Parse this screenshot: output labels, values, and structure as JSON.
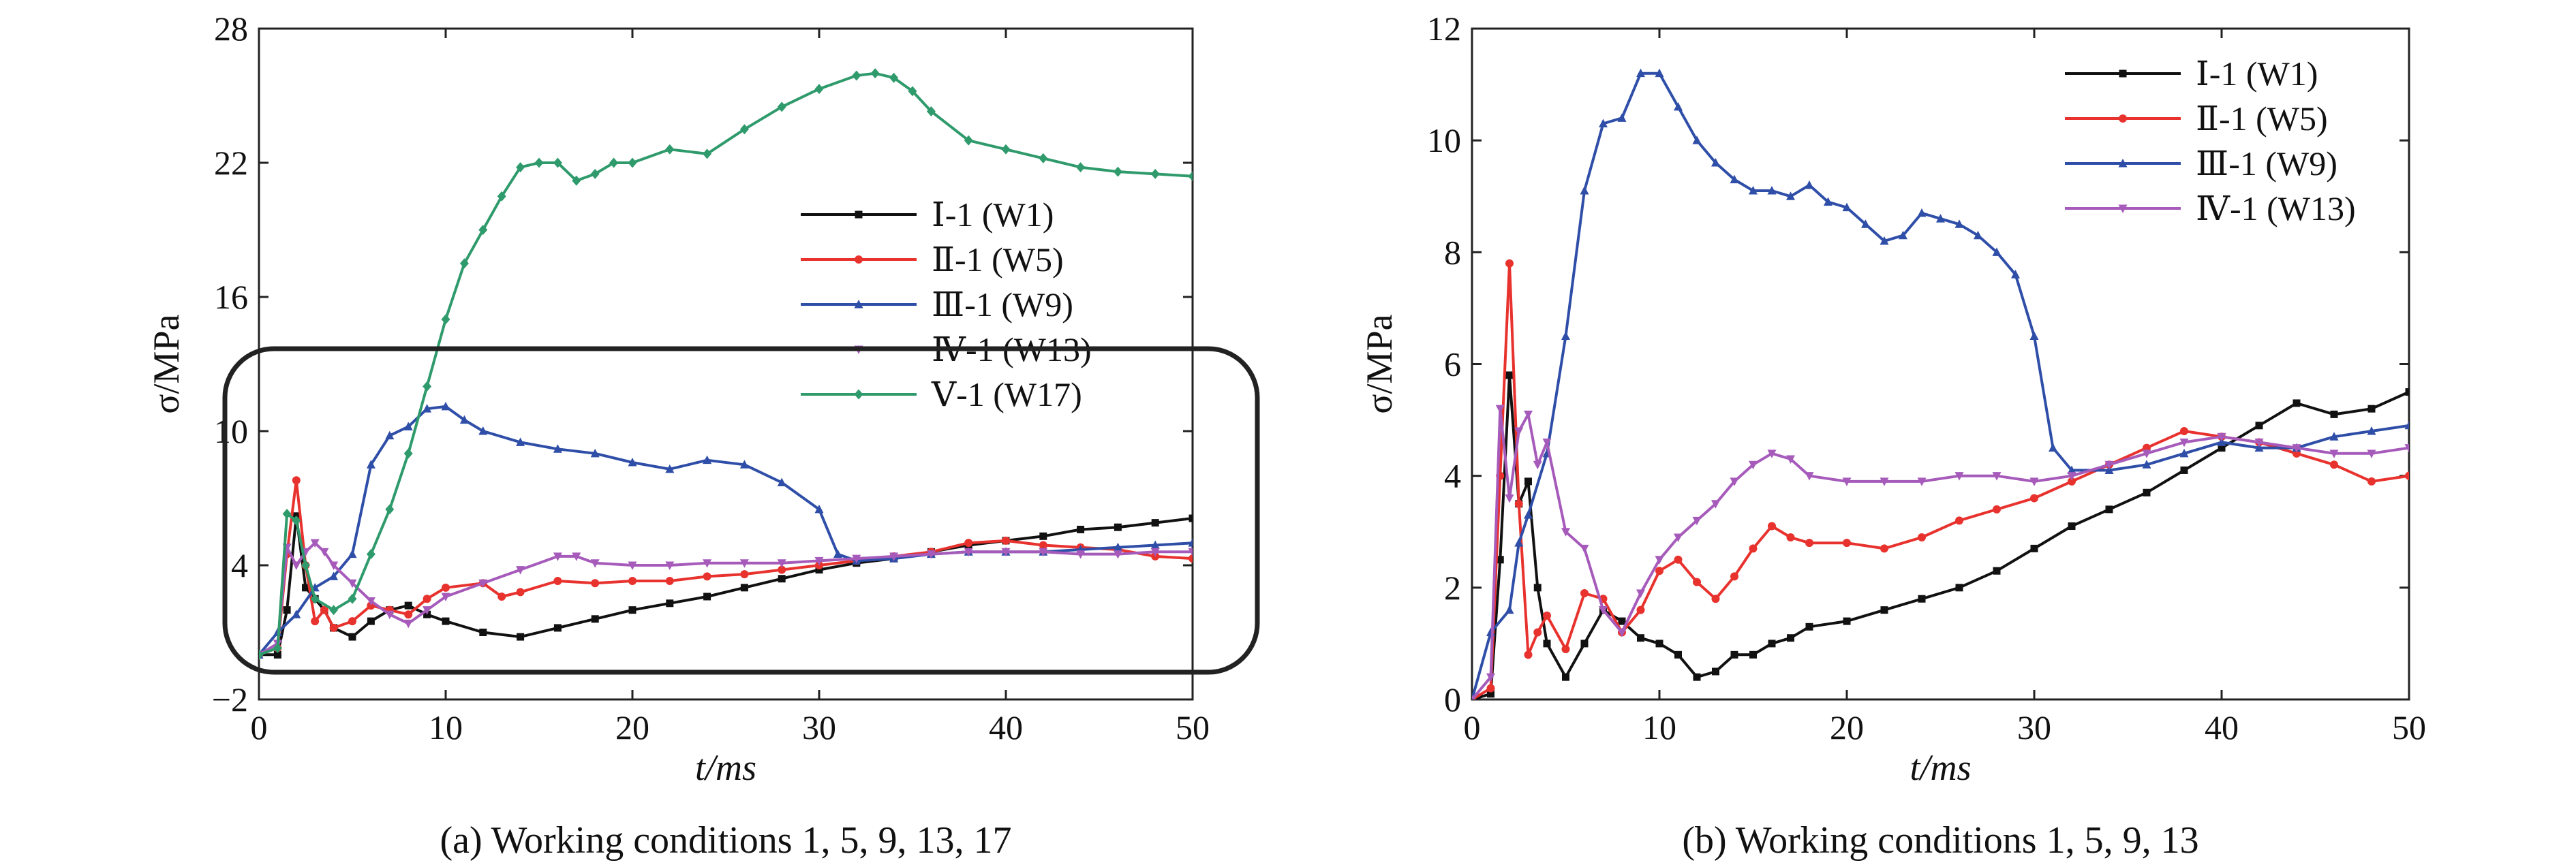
{
  "colors": {
    "W1": "#111111",
    "W5": "#e8322e",
    "W9": "#2f4ea8",
    "W13": "#a65bbb",
    "W17": "#2f9a6b",
    "frame": "#222222"
  },
  "chart_data": [
    {
      "type": "line",
      "caption": "(a) Working conditions 1, 5, 9, 13, 17",
      "xlabel": "t/ms",
      "ylabel": "σ/MPa",
      "xlim": [
        0,
        50
      ],
      "ylim": [
        -2,
        28
      ],
      "xticks": [
        "0",
        "10",
        "20",
        "30",
        "40",
        "50"
      ],
      "yticks": [
        "−2",
        "4",
        "10",
        "16",
        "22",
        "28"
      ],
      "xtick_values": [
        0,
        10,
        20,
        30,
        40,
        50
      ],
      "ytick_values": [
        -2,
        4,
        10,
        16,
        22,
        28
      ],
      "legend_position": "center-right",
      "annotation": "rounded rectangle highlighting 0–12 MPa region",
      "series": [
        {
          "name": "Ⅰ-1 (W1)",
          "color": "#111111",
          "marker": "square",
          "x": [
            0,
            1,
            1.5,
            2,
            2.5,
            3,
            3.5,
            4,
            5,
            6,
            7,
            8,
            9,
            10,
            12,
            14,
            16,
            18,
            20,
            22,
            24,
            26,
            28,
            30,
            32,
            34,
            36,
            38,
            40,
            42,
            44,
            46,
            48,
            50
          ],
          "y": [
            0,
            0,
            2,
            6.2,
            3,
            2.5,
            2,
            1.2,
            0.8,
            1.5,
            2,
            2.2,
            1.8,
            1.5,
            1.0,
            0.8,
            1.2,
            1.6,
            2,
            2.3,
            2.6,
            3,
            3.4,
            3.8,
            4.1,
            4.3,
            4.6,
            4.9,
            5.1,
            5.3,
            5.6,
            5.7,
            5.9,
            6.1
          ]
        },
        {
          "name": "Ⅱ-1 (W5)",
          "color": "#e8322e",
          "marker": "circle",
          "x": [
            0,
            1,
            1.5,
            2,
            2.5,
            3,
            3.5,
            4,
            5,
            6,
            7,
            8,
            9,
            10,
            12,
            13,
            14,
            16,
            18,
            20,
            22,
            24,
            26,
            28,
            30,
            32,
            34,
            36,
            38,
            40,
            42,
            44,
            46,
            48,
            50
          ],
          "y": [
            0,
            0.3,
            4.5,
            7.8,
            4,
            1.5,
            2,
            1.2,
            1.5,
            2.2,
            2.0,
            1.8,
            2.5,
            3.0,
            3.2,
            2.6,
            2.8,
            3.3,
            3.2,
            3.3,
            3.3,
            3.5,
            3.6,
            3.8,
            4.0,
            4.2,
            4.4,
            4.6,
            5.0,
            5.1,
            4.9,
            4.8,
            4.7,
            4.4,
            4.3
          ]
        },
        {
          "name": "Ⅲ-1 (W9)",
          "color": "#2f4ea8",
          "marker": "triangle-up",
          "x": [
            0,
            1,
            2,
            3,
            4,
            5,
            6,
            7,
            8,
            9,
            10,
            11,
            12,
            14,
            16,
            18,
            20,
            22,
            24,
            26,
            28,
            30,
            31,
            32,
            34,
            36,
            38,
            40,
            42,
            44,
            46,
            48,
            50
          ],
          "y": [
            0,
            1,
            1.8,
            3,
            3.5,
            4.5,
            8.5,
            9.8,
            10.2,
            11.0,
            11.1,
            10.5,
            10.0,
            9.5,
            9.2,
            9.0,
            8.6,
            8.3,
            8.7,
            8.5,
            7.7,
            6.5,
            4.5,
            4.2,
            4.3,
            4.5,
            4.6,
            4.6,
            4.6,
            4.7,
            4.8,
            4.9,
            5.0
          ]
        },
        {
          "name": "Ⅳ-1 (W13)",
          "color": "#a65bbb",
          "marker": "triangle-down",
          "x": [
            0,
            1,
            1.5,
            2,
            2.5,
            3,
            3.5,
            4,
            5,
            6,
            7,
            8,
            9,
            10,
            12,
            14,
            16,
            17,
            18,
            20,
            22,
            24,
            26,
            28,
            30,
            32,
            34,
            36,
            38,
            40,
            42,
            44,
            46,
            48,
            50
          ],
          "y": [
            0,
            0.5,
            4.8,
            4.0,
            4.6,
            5.0,
            4.6,
            4.0,
            3.2,
            2.4,
            1.8,
            1.4,
            2.0,
            2.6,
            3.2,
            3.8,
            4.4,
            4.4,
            4.1,
            4.0,
            4.0,
            4.1,
            4.1,
            4.1,
            4.2,
            4.3,
            4.4,
            4.5,
            4.6,
            4.6,
            4.6,
            4.5,
            4.5,
            4.6,
            4.6
          ]
        },
        {
          "name": "Ⅴ-1 (W17)",
          "color": "#2f9a6b",
          "marker": "diamond",
          "x": [
            0,
            1,
            1.5,
            2,
            2.5,
            3,
            4,
            5,
            6,
            7,
            8,
            9,
            10,
            11,
            12,
            13,
            14,
            15,
            16,
            17,
            18,
            19,
            20,
            22,
            24,
            26,
            28,
            30,
            32,
            33,
            34,
            35,
            36,
            38,
            40,
            42,
            44,
            46,
            48,
            50
          ],
          "y": [
            0,
            0.3,
            6.3,
            6.0,
            4.0,
            2.5,
            2.0,
            2.5,
            4.5,
            6.5,
            9.0,
            12.0,
            15.0,
            17.5,
            19.0,
            20.5,
            21.8,
            22.0,
            22.0,
            21.2,
            21.5,
            22.0,
            22.0,
            22.6,
            22.4,
            23.5,
            24.5,
            25.3,
            25.9,
            26.0,
            25.8,
            25.2,
            24.3,
            23.0,
            22.6,
            22.2,
            21.8,
            21.6,
            21.5,
            21.4
          ]
        }
      ]
    },
    {
      "type": "line",
      "caption": "(b) Working conditions 1, 5, 9, 13",
      "xlabel": "t/ms",
      "ylabel": "σ/MPa",
      "xlim": [
        0,
        50
      ],
      "ylim": [
        0,
        12
      ],
      "xticks": [
        "0",
        "10",
        "20",
        "30",
        "40",
        "50"
      ],
      "yticks": [
        "0",
        "2",
        "4",
        "6",
        "8",
        "10",
        "12"
      ],
      "xtick_values": [
        0,
        10,
        20,
        30,
        40,
        50
      ],
      "ytick_values": [
        0,
        2,
        4,
        6,
        8,
        10,
        12
      ],
      "legend_position": "top-right",
      "series": [
        {
          "name": "Ⅰ-1 (W1)",
          "color": "#111111",
          "marker": "square",
          "x": [
            0,
            1,
            1.5,
            2,
            2.5,
            3,
            3.5,
            4,
            5,
            6,
            7,
            8,
            9,
            10,
            11,
            12,
            13,
            14,
            15,
            16,
            17,
            18,
            20,
            22,
            24,
            26,
            28,
            30,
            32,
            34,
            36,
            38,
            40,
            42,
            44,
            46,
            48,
            50
          ],
          "y": [
            0,
            0.1,
            2.5,
            5.8,
            3.5,
            3.9,
            2.0,
            1.0,
            0.4,
            1.0,
            1.6,
            1.4,
            1.1,
            1.0,
            0.8,
            0.4,
            0.5,
            0.8,
            0.8,
            1.0,
            1.1,
            1.3,
            1.4,
            1.6,
            1.8,
            2.0,
            2.3,
            2.7,
            3.1,
            3.4,
            3.7,
            4.1,
            4.5,
            4.9,
            5.3,
            5.1,
            5.2,
            5.5
          ]
        },
        {
          "name": "Ⅱ-1 (W5)",
          "color": "#e8322e",
          "marker": "circle",
          "x": [
            0,
            1,
            1.5,
            2,
            2.5,
            3,
            3.5,
            4,
            5,
            6,
            7,
            8,
            9,
            10,
            11,
            12,
            13,
            14,
            15,
            16,
            17,
            18,
            20,
            22,
            24,
            26,
            28,
            30,
            32,
            34,
            36,
            38,
            40,
            42,
            44,
            46,
            48,
            50
          ],
          "y": [
            0,
            0.2,
            4.0,
            7.8,
            3.5,
            0.8,
            1.2,
            1.5,
            0.9,
            1.9,
            1.8,
            1.2,
            1.6,
            2.3,
            2.5,
            2.1,
            1.8,
            2.2,
            2.7,
            3.1,
            2.9,
            2.8,
            2.8,
            2.7,
            2.9,
            3.2,
            3.4,
            3.6,
            3.9,
            4.2,
            4.5,
            4.8,
            4.7,
            4.6,
            4.4,
            4.2,
            3.9,
            4.0
          ]
        },
        {
          "name": "Ⅲ-1 (W9)",
          "color": "#2f4ea8",
          "marker": "triangle-up",
          "x": [
            0,
            1,
            2,
            2.5,
            3,
            4,
            5,
            6,
            7,
            8,
            9,
            10,
            11,
            12,
            13,
            14,
            15,
            16,
            17,
            18,
            19,
            20,
            21,
            22,
            23,
            24,
            25,
            26,
            27,
            28,
            29,
            30,
            31,
            32,
            34,
            36,
            38,
            40,
            42,
            44,
            46,
            48,
            50
          ],
          "y": [
            0,
            1.2,
            1.6,
            2.8,
            3.3,
            4.4,
            6.5,
            9.1,
            10.3,
            10.4,
            11.2,
            11.2,
            10.6,
            10.0,
            9.6,
            9.3,
            9.1,
            9.1,
            9.0,
            9.2,
            8.9,
            8.8,
            8.5,
            8.2,
            8.3,
            8.7,
            8.6,
            8.5,
            8.3,
            8.0,
            7.6,
            6.5,
            4.5,
            4.1,
            4.1,
            4.2,
            4.4,
            4.6,
            4.5,
            4.5,
            4.7,
            4.8,
            4.9
          ]
        },
        {
          "name": "Ⅳ-1 (W13)",
          "color": "#a65bbb",
          "marker": "triangle-down",
          "x": [
            0,
            1,
            1.5,
            2,
            2.5,
            3,
            3.5,
            4,
            5,
            6,
            7,
            8,
            9,
            10,
            11,
            12,
            13,
            14,
            15,
            16,
            17,
            18,
            20,
            22,
            24,
            26,
            28,
            30,
            32,
            34,
            36,
            38,
            40,
            42,
            44,
            46,
            48,
            50
          ],
          "y": [
            0,
            0.4,
            5.2,
            3.6,
            4.8,
            5.1,
            4.2,
            4.6,
            3.0,
            2.7,
            1.6,
            1.2,
            1.9,
            2.5,
            2.9,
            3.2,
            3.5,
            3.9,
            4.2,
            4.4,
            4.3,
            4.0,
            3.9,
            3.9,
            3.9,
            4.0,
            4.0,
            3.9,
            4.0,
            4.2,
            4.4,
            4.6,
            4.7,
            4.6,
            4.5,
            4.4,
            4.4,
            4.5
          ]
        }
      ]
    }
  ]
}
